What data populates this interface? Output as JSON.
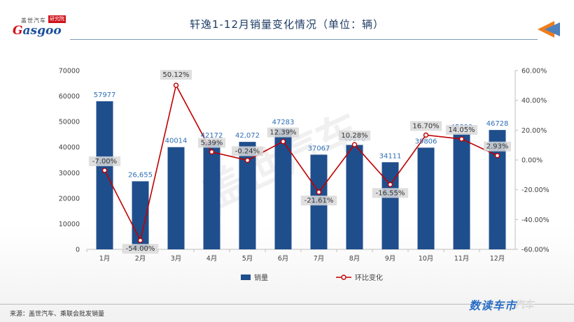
{
  "logo": {
    "cn": "盖世汽车",
    "badge": "研究院",
    "en_g": "G",
    "en_rest": "asgoo"
  },
  "title": "轩逸1-12月销量变化情况（单位：辆）",
  "watermark": "盖世汽车",
  "source": "来源：盖世汽车、乘联会批发销量",
  "brand": "数读车市",
  "brand_ghost": "汽车",
  "colors": {
    "bar": "#1f4e8c",
    "line": "#c00000",
    "axis": "#bfbfbf",
    "text": "#404040",
    "bar_label": "#2e6eb5"
  },
  "chart_data": {
    "type": "bar",
    "categories": [
      "1月",
      "2月",
      "3月",
      "4月",
      "5月",
      "6月",
      "7月",
      "8月",
      "9月",
      "10月",
      "11月",
      "12月"
    ],
    "series": [
      {
        "name": "销量",
        "type": "bar",
        "axis": "left",
        "values": [
          57977,
          26655,
          40014,
          42172,
          42072,
          47283,
          37067,
          40876,
          34111,
          39806,
          45399,
          46728
        ],
        "labels": [
          "57977",
          "26,655",
          "40014",
          "42172",
          "42,072",
          "47283",
          "37067",
          "40876",
          "34111",
          "39806",
          "45399",
          "46728"
        ]
      },
      {
        "name": "环比变化",
        "type": "line",
        "axis": "right",
        "values": [
          -7.0,
          -54.0,
          50.12,
          5.39,
          -0.24,
          12.39,
          -21.61,
          10.28,
          -16.55,
          16.7,
          14.05,
          2.93
        ],
        "labels": [
          "-7.00%",
          "-54.00%",
          "50.12%",
          "5.39%",
          "-0.24%",
          "12.39%",
          "-21.61%",
          "10.28%",
          "-16.55%",
          "16.70%",
          "14.05%",
          "2.93%"
        ]
      }
    ],
    "y_left": {
      "min": 0,
      "max": 70000,
      "ticks": [
        "0",
        "10000",
        "20000",
        "30000",
        "40000",
        "50000",
        "60000",
        "70000"
      ]
    },
    "y_right": {
      "min": -60,
      "max": 60,
      "ticks": [
        "-60.00%",
        "-40.00%",
        "-20.00%",
        "0.00%",
        "20.00%",
        "40.00%",
        "60.00%"
      ]
    },
    "legend": {
      "position": "bottom"
    },
    "grid": false
  }
}
